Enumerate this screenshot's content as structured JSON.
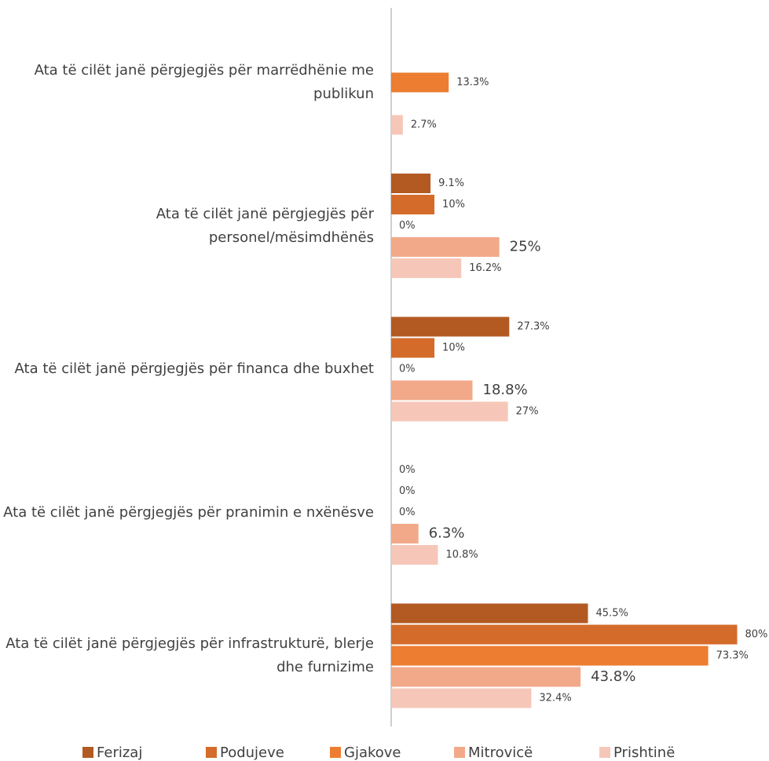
{
  "chart_data": {
    "type": "bar",
    "orientation": "horizontal",
    "categories": [
      "Ata të cilët janë përgjegjës për marrëdhënie me publikun",
      "Ata të cilët janë përgjegjës për personel/mësimdhënës",
      "Ata të cilët janë përgjegjës për financa dhe buxhet",
      "Ata të cilët janë përgjegjës për pranimin e nxënësve",
      "Ata të cilët janë përgjegjës për infrastrukturë, blerje dhe furnizime"
    ],
    "xlim": [
      0,
      83
    ],
    "series": [
      {
        "name": "Ferizaj",
        "color": "#b35a22",
        "values": [
          null,
          9.1,
          27.3,
          0,
          45.5
        ],
        "value_labels": [
          null,
          "9.1%",
          "27.3%",
          "0%",
          "45.5%"
        ]
      },
      {
        "name": "Podujeve",
        "color": "#d46b2a",
        "values": [
          null,
          10,
          10,
          0,
          80
        ],
        "value_labels": [
          null,
          "10%",
          "10%",
          "0%",
          "80%"
        ]
      },
      {
        "name": "Gjakove",
        "color": "#ed7d31",
        "values": [
          13.3,
          0,
          0,
          0,
          73.3
        ],
        "value_labels": [
          "13.3%",
          "0%",
          "0%",
          "0%",
          "73.3%"
        ]
      },
      {
        "name": "Mitrovicë",
        "color": "#f2a98a",
        "values": [
          null,
          25,
          18.8,
          6.3,
          43.8
        ],
        "value_labels": [
          null,
          "25%",
          "18.8%",
          "6.3%",
          "43.8%"
        ]
      },
      {
        "name": "Prishtinë",
        "color": "#f6c7b8",
        "values": [
          2.7,
          16.2,
          27,
          10.8,
          32.4
        ],
        "value_labels": [
          "2.7%",
          "16.2%",
          "27%",
          "10.8%",
          "32.4%"
        ]
      }
    ],
    "legend": "bottom"
  }
}
